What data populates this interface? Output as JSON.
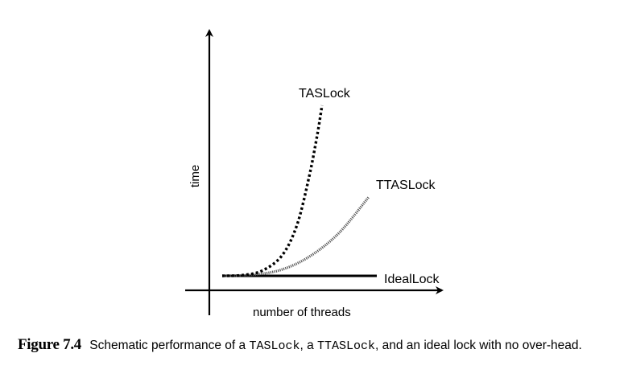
{
  "chart_data": {
    "type": "line",
    "title": "",
    "xlabel": "number of threads",
    "ylabel": "time",
    "x_ticks": [],
    "y_ticks": [],
    "grid": false,
    "legend": "none (series labeled inline at line ends)",
    "series": [
      {
        "name": "TASLock",
        "style": "dotted",
        "color": "#000000",
        "shape": "steep exponential rise",
        "points": [
          [
            0.0,
            0.0
          ],
          [
            0.2,
            0.004
          ],
          [
            0.4,
            0.03
          ],
          [
            0.6,
            0.12
          ],
          [
            0.75,
            0.3
          ],
          [
            0.87,
            0.58
          ],
          [
            0.95,
            0.82
          ],
          [
            1.0,
            1.0
          ]
        ]
      },
      {
        "name": "TTASLock",
        "style": "fine-dotted",
        "color": "#555555",
        "shape": "moderate rise",
        "points": [
          [
            0.0,
            0.0
          ],
          [
            0.2,
            0.005
          ],
          [
            0.4,
            0.03
          ],
          [
            0.6,
            0.1
          ],
          [
            0.8,
            0.22
          ],
          [
            1.0,
            0.4
          ]
        ]
      },
      {
        "name": "IdealLock",
        "style": "solid",
        "color": "#000000",
        "shape": "flat",
        "points": [
          [
            0.0,
            0.0
          ],
          [
            1.0,
            0.0
          ]
        ]
      }
    ]
  },
  "caption": {
    "label": "Figure  7.4",
    "text_1": "Schematic performance of a ",
    "code_1": "TASLock",
    "text_2": ", a ",
    "code_2": "TTASLock",
    "text_3": ", and an ideal lock with no over-head."
  }
}
